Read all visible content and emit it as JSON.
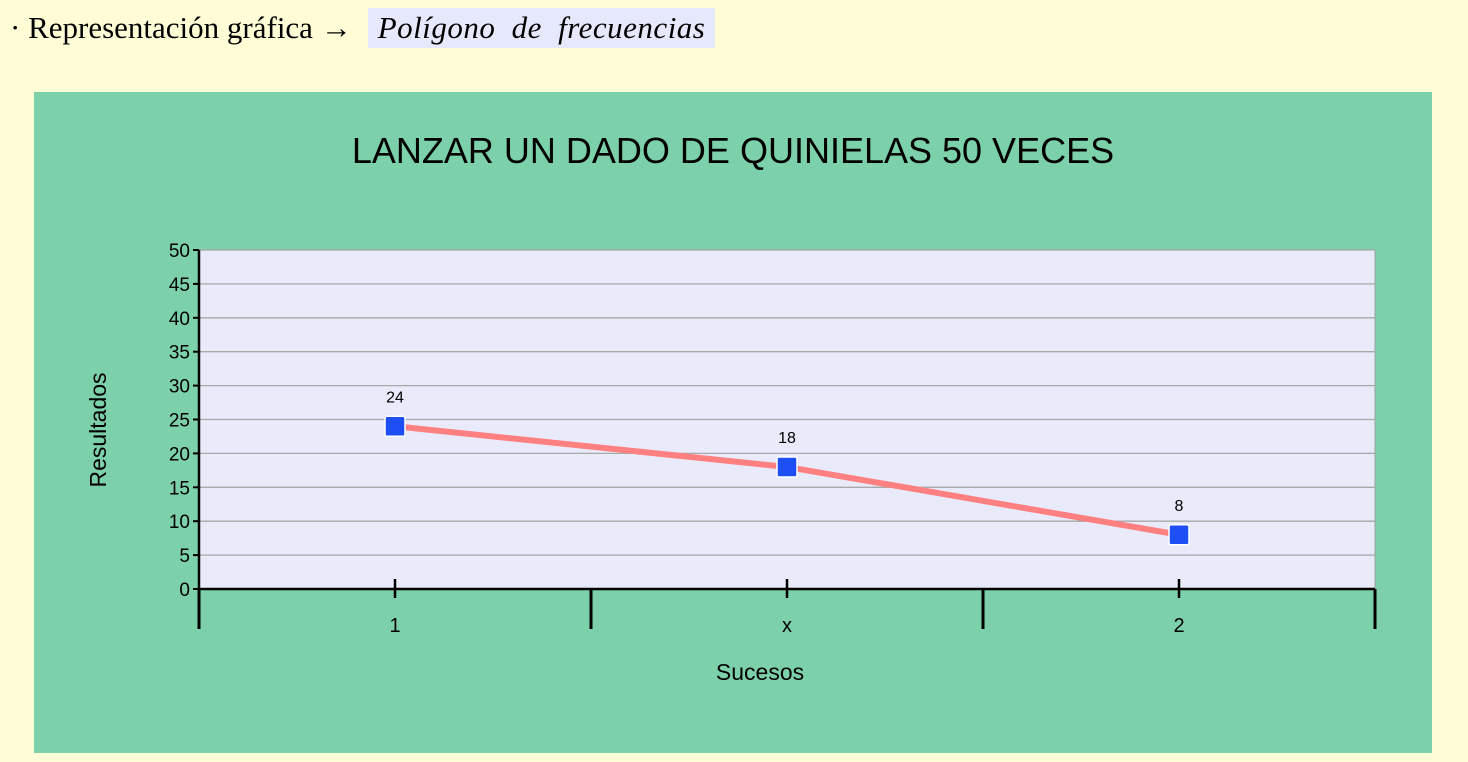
{
  "heading": {
    "lead": "· Representación gráfica →",
    "highlight": "Polígono de frecuencias"
  },
  "colors": {
    "page_background": "#fffdd6",
    "panel_background": "#7cd1ab",
    "plot_background": "#e9eafa",
    "line": "#ff8080",
    "marker": "#1d4ff5",
    "heading_highlight": "#e6e8fb"
  },
  "chart_data": {
    "type": "line",
    "title": "LANZAR UN DADO DE QUINIELAS 50 VECES",
    "xlabel": "Sucesos",
    "ylabel": "Resultados",
    "categories": [
      "1",
      "x",
      "2"
    ],
    "series": [
      {
        "values": [
          24,
          18,
          8
        ]
      }
    ],
    "data_labels": [
      "24",
      "18",
      "8"
    ],
    "ylim": [
      0,
      50
    ],
    "yticks": [
      "0",
      "5",
      "10",
      "15",
      "20",
      "25",
      "30",
      "35",
      "40",
      "45",
      "50"
    ],
    "grid": true,
    "legend": "none",
    "marker": "square"
  }
}
